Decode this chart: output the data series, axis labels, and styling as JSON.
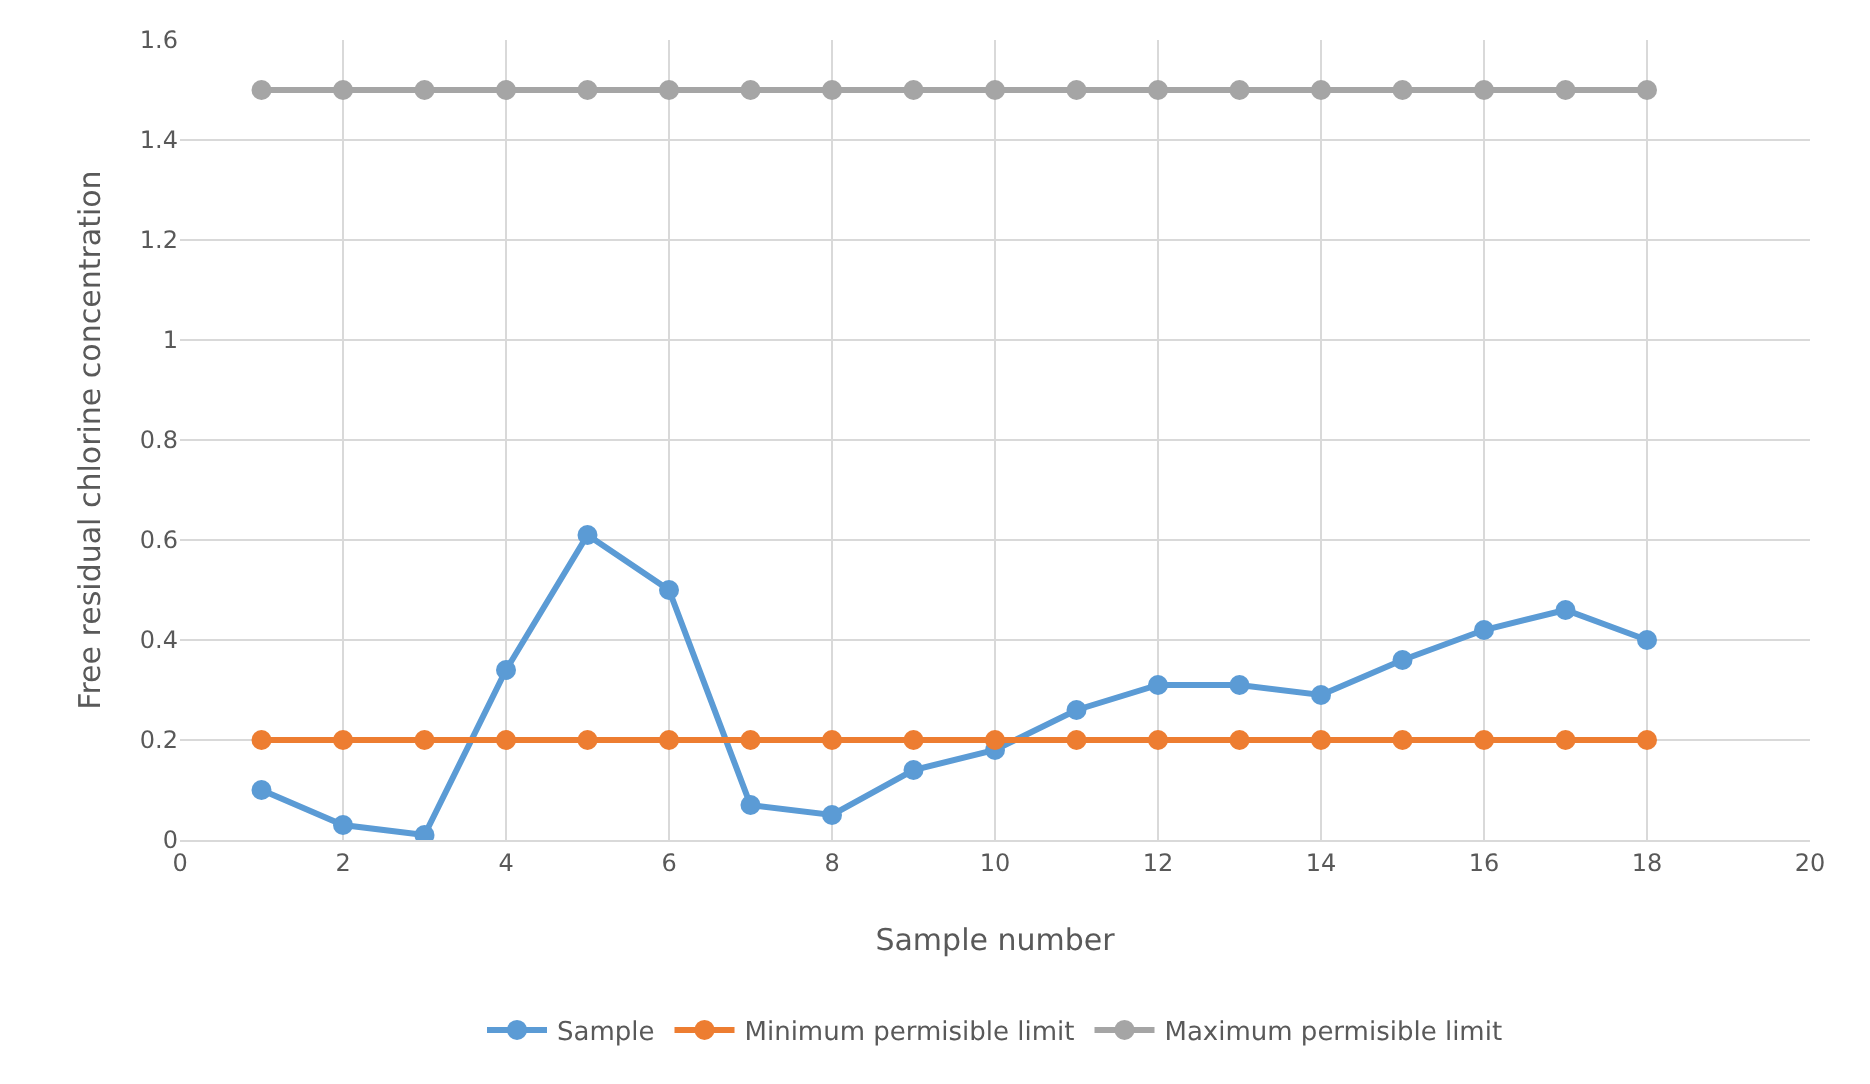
{
  "chart_data": {
    "type": "line",
    "xlabel": "Sample number",
    "ylabel": "Free residual chlorine concentration",
    "x": [
      1,
      2,
      3,
      4,
      5,
      6,
      7,
      8,
      9,
      10,
      11,
      12,
      13,
      14,
      15,
      16,
      17,
      18
    ],
    "series": [
      {
        "name": "Sample",
        "color": "#5b9bd5",
        "values": [
          0.1,
          0.03,
          0.01,
          0.34,
          0.61,
          0.5,
          0.07,
          0.05,
          0.14,
          0.18,
          0.26,
          0.31,
          0.31,
          0.29,
          0.36,
          0.42,
          0.46,
          0.4
        ]
      },
      {
        "name": "Minimum permisible limit",
        "color": "#ed7d31",
        "values": [
          0.2,
          0.2,
          0.2,
          0.2,
          0.2,
          0.2,
          0.2,
          0.2,
          0.2,
          0.2,
          0.2,
          0.2,
          0.2,
          0.2,
          0.2,
          0.2,
          0.2,
          0.2
        ]
      },
      {
        "name": "Maximum permisible limit",
        "color": "#a5a5a5",
        "values": [
          1.5,
          1.5,
          1.5,
          1.5,
          1.5,
          1.5,
          1.5,
          1.5,
          1.5,
          1.5,
          1.5,
          1.5,
          1.5,
          1.5,
          1.5,
          1.5,
          1.5,
          1.5
        ]
      }
    ],
    "xlim": [
      0,
      20
    ],
    "xticks": [
      0,
      2,
      4,
      6,
      8,
      10,
      12,
      14,
      16,
      18,
      20
    ],
    "ylim": [
      0,
      1.6
    ],
    "yticks": [
      0,
      0.2,
      0.4,
      0.6,
      0.8,
      1,
      1.2,
      1.4,
      1.6
    ],
    "grid": true,
    "legend": "bottom",
    "marker": "circle",
    "line_style": "solid"
  }
}
